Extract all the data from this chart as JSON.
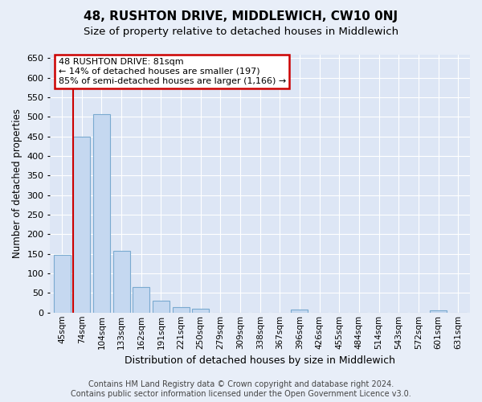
{
  "title": "48, RUSHTON DRIVE, MIDDLEWICH, CW10 0NJ",
  "subtitle": "Size of property relative to detached houses in Middlewich",
  "xlabel": "Distribution of detached houses by size in Middlewich",
  "ylabel": "Number of detached properties",
  "categories": [
    "45sqm",
    "74sqm",
    "104sqm",
    "133sqm",
    "162sqm",
    "191sqm",
    "221sqm",
    "250sqm",
    "279sqm",
    "309sqm",
    "338sqm",
    "367sqm",
    "396sqm",
    "426sqm",
    "455sqm",
    "484sqm",
    "514sqm",
    "543sqm",
    "572sqm",
    "601sqm",
    "631sqm"
  ],
  "values": [
    147,
    450,
    507,
    158,
    65,
    30,
    13,
    9,
    0,
    0,
    0,
    0,
    7,
    0,
    0,
    0,
    0,
    0,
    0,
    6,
    0
  ],
  "bar_color": "#c5d8f0",
  "bar_edge_color": "#7aaad0",
  "highlight_bar_index": 1,
  "red_line_color": "#cc0000",
  "annotation_text": "48 RUSHTON DRIVE: 81sqm\n← 14% of detached houses are smaller (197)\n85% of semi-detached houses are larger (1,166) →",
  "annotation_box_facecolor": "white",
  "annotation_box_edgecolor": "#cc0000",
  "ylim": [
    0,
    660
  ],
  "yticks": [
    0,
    50,
    100,
    150,
    200,
    250,
    300,
    350,
    400,
    450,
    500,
    550,
    600,
    650
  ],
  "background_color": "#e8eef8",
  "plot_background_color": "#dde6f5",
  "grid_color": "white",
  "title_fontsize": 11,
  "subtitle_fontsize": 9.5,
  "xlabel_fontsize": 9,
  "ylabel_fontsize": 8.5,
  "footer_text": "Contains HM Land Registry data © Crown copyright and database right 2024.\nContains public sector information licensed under the Open Government Licence v3.0.",
  "footer_fontsize": 7
}
